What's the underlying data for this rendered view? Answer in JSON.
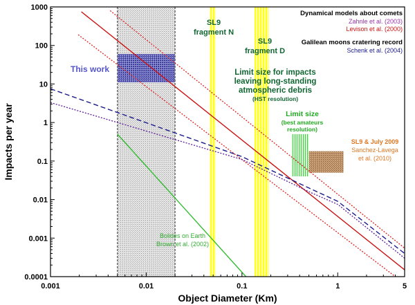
{
  "chart_data": {
    "type": "line",
    "title": "",
    "xlabel": "Object Diameter (Km)",
    "ylabel": "Impacts per year",
    "xscale": "log",
    "yscale": "log",
    "xlim": [
      0.001,
      5
    ],
    "ylim": [
      0.0001,
      1000
    ],
    "xticks": [
      {
        "value": 0.001,
        "label": "0.001"
      },
      {
        "value": 0.01,
        "label": "0.01"
      },
      {
        "value": 0.1,
        "label": "0.1"
      },
      {
        "value": 1,
        "label": "1"
      },
      {
        "value": 5,
        "label": "5"
      }
    ],
    "yticks": [
      {
        "value": 1000,
        "label": "1000"
      },
      {
        "value": 100,
        "label": "100"
      },
      {
        "value": 10,
        "label": "10"
      },
      {
        "value": 1,
        "label": "1"
      },
      {
        "value": 0.1,
        "label": "0.1"
      },
      {
        "value": 0.01,
        "label": "0.01"
      },
      {
        "value": 0.001,
        "label": "0.001"
      },
      {
        "value": 0.0001,
        "label": "0.0001"
      }
    ],
    "series": [
      {
        "name": "Levison et al. (2000) - central",
        "color": "#cc1111",
        "style": "solid",
        "x": [
          0.0021,
          5
        ],
        "y": [
          750,
          0.00015
        ]
      },
      {
        "name": "Levison et al. (2000) - upper bound",
        "color": "#dd2222",
        "style": "dotted",
        "x": [
          0.0042,
          5
        ],
        "y": [
          800,
          0.00055
        ]
      },
      {
        "name": "Levison et al. (2000) - lower bound",
        "color": "#dd2222",
        "style": "dotted",
        "x": [
          0.00195,
          4.0
        ],
        "y": [
          190,
          0.0001
        ]
      },
      {
        "name": "Zahnle et al. (2003)",
        "color": "#1a1a8a",
        "style": "dashed",
        "x": [
          0.001,
          0.1,
          0.5,
          1,
          5
        ],
        "y": [
          7.5,
          0.13,
          0.02,
          0.009,
          0.0004
        ]
      },
      {
        "name": "Schenk et al. (2004)",
        "color": "#5a1a9a",
        "style": "dotted",
        "x": [
          0.001,
          0.1,
          0.5,
          1,
          5
        ],
        "y": [
          3.3,
          0.11,
          0.016,
          0.0075,
          0.0003
        ]
      },
      {
        "name": "Brown et al. (2002)",
        "color": "#33bb33",
        "style": "solid",
        "x": [
          0.005,
          0.11
        ],
        "y": [
          0.5,
          0.0001
        ]
      }
    ],
    "regions": [
      {
        "name": "grey-band",
        "x": [
          0.005,
          0.02
        ],
        "y": [
          0.0001,
          1000
        ],
        "color": "#c8c8c8"
      },
      {
        "name": "this-work-box",
        "x": [
          0.005,
          0.02
        ],
        "y": [
          11,
          60
        ],
        "color": "#3a3aa0"
      },
      {
        "name": "sl9-fragment-n-band",
        "x": [
          0.046,
          0.053
        ],
        "y": [
          0.0001,
          1000
        ],
        "color": "#ffff33"
      },
      {
        "name": "sl9-fragment-d-band",
        "x": [
          0.135,
          0.19
        ],
        "y": [
          0.0001,
          1000
        ],
        "color": "#ffff33"
      },
      {
        "name": "limit-size-box",
        "x": [
          0.33,
          0.5
        ],
        "y": [
          0.04,
          0.5
        ],
        "color": "#55cc55"
      },
      {
        "name": "sl9-july-2009-box",
        "x": [
          0.5,
          1.15
        ],
        "y": [
          0.05,
          0.18
        ],
        "color": "#a0724a"
      }
    ]
  },
  "annotations": {
    "header_dynamical": "Dynamical models about comets",
    "zahnle": "Zahnle et al. (2003)",
    "levison": "Levison et al. (2000)",
    "header_galilean": "Galilean moons cratering record",
    "schenk": "Schenk et al. (2004)",
    "this_work": "This work",
    "sl9n_l1": "SL9",
    "sl9n_l2": "fragment N",
    "sl9d_l1": "SL9",
    "sl9d_l2": "fragment D",
    "limit_l1": "Limit size for impacts",
    "limit_l2": "leaving long-standing",
    "limit_l3": "atmospheric debris",
    "limit_l4": "(HST resolution)",
    "ls_l1": "Limit size",
    "ls_l2": "(best amateurs",
    "ls_l3": "resolution)",
    "sl9j_l1": "SL9 & July 2009",
    "sl9j_l2": "Sanchez-Lavega",
    "sl9j_l3": "et al. (2010)",
    "bolides_l1": "Bolides on Earth",
    "bolides_l2": "Brown et al. (2002)"
  },
  "colors": {
    "levison": "#cc1111",
    "zahnle": "#1a1a8a",
    "schenk": "#5a1a9a",
    "brown": "#33bb33",
    "dark_green": "#116633",
    "bright_green": "#22aa22",
    "this_work": "#5555cc",
    "sl9_box": "#a0724a",
    "orange": "#dd7722"
  }
}
